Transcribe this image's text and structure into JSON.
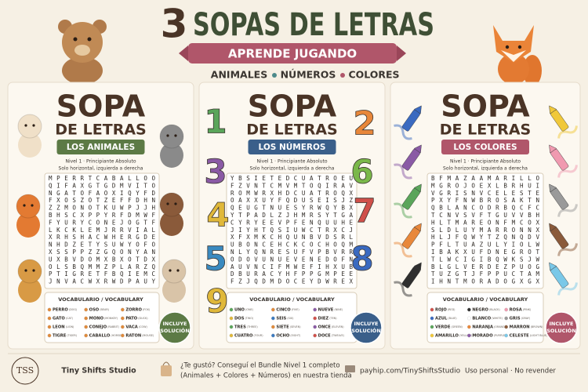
{
  "header": {
    "number": "3",
    "title": "SOPAS DE LETRAS",
    "banner": "APRENDE JUGANDO",
    "themes": [
      "ANIMALES",
      "NÚMEROS",
      "COLORES"
    ]
  },
  "cards": [
    {
      "title": "SOPA",
      "subtitle": "DE LETRAS",
      "theme": "LOS ANIMALES",
      "level": "Nivel 1 · Principiante Absoluto",
      "rule": "Solo horizontal, izquierda a derecha",
      "grid": [
        "MPERRTCABALLOO",
        "QIFAXGTGDMVITO",
        "NGATOFAOXIQYFD",
        "FXOSZOTZEFFDHN",
        "ZZMONOTKUWPJJH",
        "BHSCXPPYRFDMWF",
        "FYURYCONEJOGTF",
        "LKCKLEMJRRVIAL",
        "XRHSHACWHERGDE",
        "NHDZETYSUWYOFO",
        "XSSPPZZGQONYAN",
        "UXBVDOMXBXOTDX",
        "OLSBQMMZPLARZQ",
        "PTIGRETFBQIEMC",
        "JNVACWXRWDPAUY"
      ],
      "vocab_title": "VOCABULARIO / VOCABULARY",
      "vocab": [
        {
          "word": "PERRO",
          "translation": "(DOG)"
        },
        {
          "word": "OSO",
          "translation": "(BEAR)"
        },
        {
          "word": "ZORRO",
          "translation": "(FOX)"
        },
        {
          "word": "GATO",
          "translation": "(CAT)"
        },
        {
          "word": "MONO",
          "translation": "(MONKEY)"
        },
        {
          "word": "PATO",
          "translation": "(DUCK)"
        },
        {
          "word": "LEON",
          "translation": "(LION)"
        },
        {
          "word": "CONEJO",
          "translation": "(RABBIT)"
        },
        {
          "word": "VACA",
          "translation": "(COW)"
        },
        {
          "word": "TIGRE",
          "translation": "(TIGER)"
        },
        {
          "word": "CABALLO",
          "translation": "(HORSE)"
        },
        {
          "word": "RATON",
          "translation": "(MOUSE)"
        }
      ],
      "badge": [
        "INCLUYE",
        "SOLUCIÓN"
      ]
    },
    {
      "title": "SOPA",
      "subtitle": "DE LETRAS",
      "theme": "LOS NÚMEROS",
      "level": "Nivel 1 · Principiante Absoluto",
      "rule": "Solo horizontal, izquierda a derecha",
      "grid": [
        "YBSIETEDCUATROEU",
        "FZVNTCMVMTOQIRAV",
        "ROMWRXHDCUATROQX",
        "OAXXUYFQDUSEISJZ",
        "QEUGTNUESYRWQYBX",
        "YTPADLZJHMRSYTGA",
        "CYRYEEVPFENQUUHE",
        "JIYHTQSIUWCTRXCJ",
        "XFXMKCHQUNBVDSRL",
        "UBONCEHCKCOCHOQM",
        "NLYQNRESUFVPBVRR",
        "ODOVUNUEVENEDOFN",
        "AUVNCIFMWEFIHXUB",
        "DBURACYHFPPGMPEE",
        "FZJQDMDOCEYDWREX"
      ],
      "vocab_title": "VOCABULARIO / VOCABULARY",
      "vocab": [
        {
          "word": "UNO",
          "translation": "(ONE)"
        },
        {
          "word": "CINCO",
          "translation": "(FIVE)"
        },
        {
          "word": "NUEVE",
          "translation": "(NINE)"
        },
        {
          "word": "DOS",
          "translation": "(TWO)"
        },
        {
          "word": "SEIS",
          "translation": "(SIX)"
        },
        {
          "word": "DIEZ",
          "translation": "(TEN)"
        },
        {
          "word": "TRES",
          "translation": "(THREE)"
        },
        {
          "word": "SIETE",
          "translation": "(SEVEN)"
        },
        {
          "word": "ONCE",
          "translation": "(ELEVEN)"
        },
        {
          "word": "CUATRO",
          "translation": "(FOUR)"
        },
        {
          "word": "OCHO",
          "translation": "(EIGHT)"
        },
        {
          "word": "DOCE",
          "translation": "(TWELVE)"
        }
      ],
      "badge": [
        "INCLUYE",
        "SOLUCIÓN"
      ]
    },
    {
      "title": "SOPA",
      "subtitle": "DE LETRAS",
      "theme": "LOS COLORES",
      "level": "Nivel 1 · Principiante Absoluto",
      "rule": "Solo horizontal, izquierda a derecha",
      "grid": [
        "BFMAZAAMARILLO",
        "MGROJOEXLBRHUI",
        "VGRISNVCELESTE",
        "PXYFNWBROSAKTN",
        "QBLANCODRBQCFC",
        "TCNVSVFTGUVVBH",
        "HLTMAREONFMCOX",
        "SLDLUYMARRONNX",
        "HLJFQWYTZQNQDV",
        "PFLTUAZULYIOLW",
        "IBAKXUFDNEGROT",
        "TLWCIGIBQWKSJW",
        "BLGLVERDEZPUOG",
        "TUZGTJFPPUCTAM",
        "IHNTMORADOGXGX"
      ],
      "vocab_title": "VOCABULARIO / VOCABULARY",
      "vocab": [
        {
          "word": "ROJO",
          "translation": "(RED)"
        },
        {
          "word": "NEGRO",
          "translation": "(BLACK)"
        },
        {
          "word": "ROSA",
          "translation": "(PINK)"
        },
        {
          "word": "AZUL",
          "translation": "(BLUE)"
        },
        {
          "word": "BLANCO",
          "translation": "(WHITE)"
        },
        {
          "word": "GRIS",
          "translation": "(GRAY)"
        },
        {
          "word": "VERDE",
          "translation": "(GREEN)"
        },
        {
          "word": "NARANJA",
          "translation": "(ORANGE)"
        },
        {
          "word": "MARRON",
          "translation": "(BROWN)"
        },
        {
          "word": "AMARILLO",
          "translation": "(YELLOW)"
        },
        {
          "word": "MORADO",
          "translation": "(PURPLE)"
        },
        {
          "word": "CELESTE",
          "translation": "(LIGHT BLUE)"
        }
      ],
      "badge": [
        "INCLUYE",
        "SOLUCIÓN"
      ]
    }
  ],
  "numbers": [
    "1",
    "2",
    "3",
    "6",
    "4",
    "7",
    "5",
    "8",
    "9"
  ],
  "footer": {
    "logo": "TSS",
    "studio": "Tiny Shifts Studio",
    "promo": [
      "¿Te gustó? Conseguí el Bundle Nivel 1 completo",
      "(Animales + Colores + Números) en nuestra tienda"
    ],
    "link": "payhip.com/TinyShiftsStudio",
    "license": "Uso personal · No revender"
  }
}
